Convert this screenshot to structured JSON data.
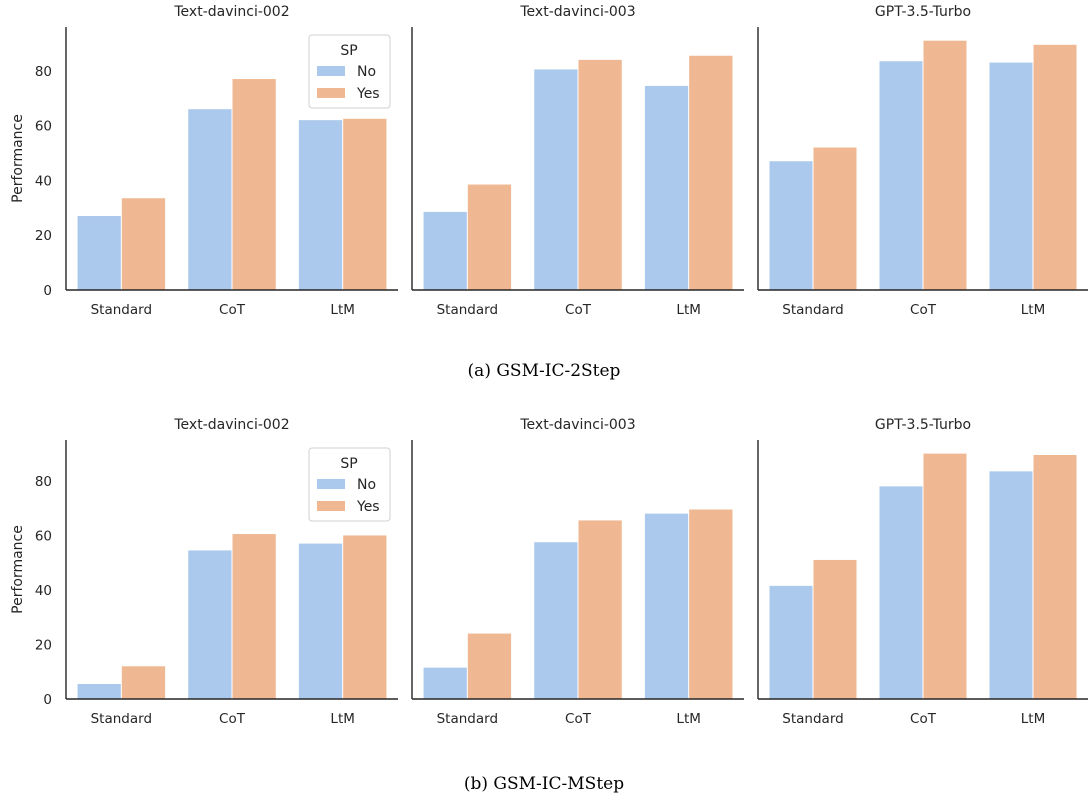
{
  "colors": {
    "no": "#abc9ec",
    "yes": "#f0b892",
    "axis": "#262626"
  },
  "figures": [
    {
      "caption": "(a)  GSM-IC-2Step",
      "chart_data": [
        {
          "type": "bar",
          "title": "Text-davinci-002",
          "categories": [
            "Standard",
            "CoT",
            "LtM"
          ],
          "series": [
            {
              "name": "No",
              "values": [
                27,
                66,
                62
              ]
            },
            {
              "name": "Yes",
              "values": [
                33.5,
                77,
                62.5
              ]
            }
          ],
          "ylabel": "Performance",
          "yticks": [
            0,
            20,
            40,
            60,
            80
          ],
          "ylim": [
            0,
            96
          ],
          "legend": {
            "title": "SP",
            "entries": [
              "No",
              "Yes"
            ],
            "placement": "top-right"
          }
        },
        {
          "type": "bar",
          "title": "Text-davinci-003",
          "categories": [
            "Standard",
            "CoT",
            "LtM"
          ],
          "series": [
            {
              "name": "No",
              "values": [
                28.5,
                80.5,
                74.5
              ]
            },
            {
              "name": "Yes",
              "values": [
                38.5,
                84,
                85.5
              ]
            }
          ],
          "ylim": [
            0,
            96
          ]
        },
        {
          "type": "bar",
          "title": "GPT-3.5-Turbo",
          "categories": [
            "Standard",
            "CoT",
            "LtM"
          ],
          "series": [
            {
              "name": "No",
              "values": [
                47,
                83.5,
                83
              ]
            },
            {
              "name": "Yes",
              "values": [
                52,
                91,
                89.5
              ]
            }
          ],
          "ylim": [
            0,
            96
          ]
        }
      ]
    },
    {
      "caption": "(b)  GSM-IC-MStep",
      "chart_data": [
        {
          "type": "bar",
          "title": "Text-davinci-002",
          "categories": [
            "Standard",
            "CoT",
            "LtM"
          ],
          "series": [
            {
              "name": "No",
              "values": [
                5.5,
                54.5,
                57
              ]
            },
            {
              "name": "Yes",
              "values": [
                12,
                60.5,
                60
              ]
            }
          ],
          "ylabel": "Performance",
          "yticks": [
            0,
            20,
            40,
            60,
            80
          ],
          "ylim": [
            0,
            95
          ],
          "legend": {
            "title": "SP",
            "entries": [
              "No",
              "Yes"
            ],
            "placement": "top-right"
          }
        },
        {
          "type": "bar",
          "title": "Text-davinci-003",
          "categories": [
            "Standard",
            "CoT",
            "LtM"
          ],
          "series": [
            {
              "name": "No",
              "values": [
                11.5,
                57.5,
                68
              ]
            },
            {
              "name": "Yes",
              "values": [
                24,
                65.5,
                69.5
              ]
            }
          ],
          "ylim": [
            0,
            95
          ]
        },
        {
          "type": "bar",
          "title": "GPT-3.5-Turbo",
          "categories": [
            "Standard",
            "CoT",
            "LtM"
          ],
          "series": [
            {
              "name": "No",
              "values": [
                41.5,
                78,
                83.5
              ]
            },
            {
              "name": "Yes",
              "values": [
                51,
                90,
                89.5
              ]
            }
          ],
          "ylim": [
            0,
            95
          ]
        }
      ]
    }
  ]
}
